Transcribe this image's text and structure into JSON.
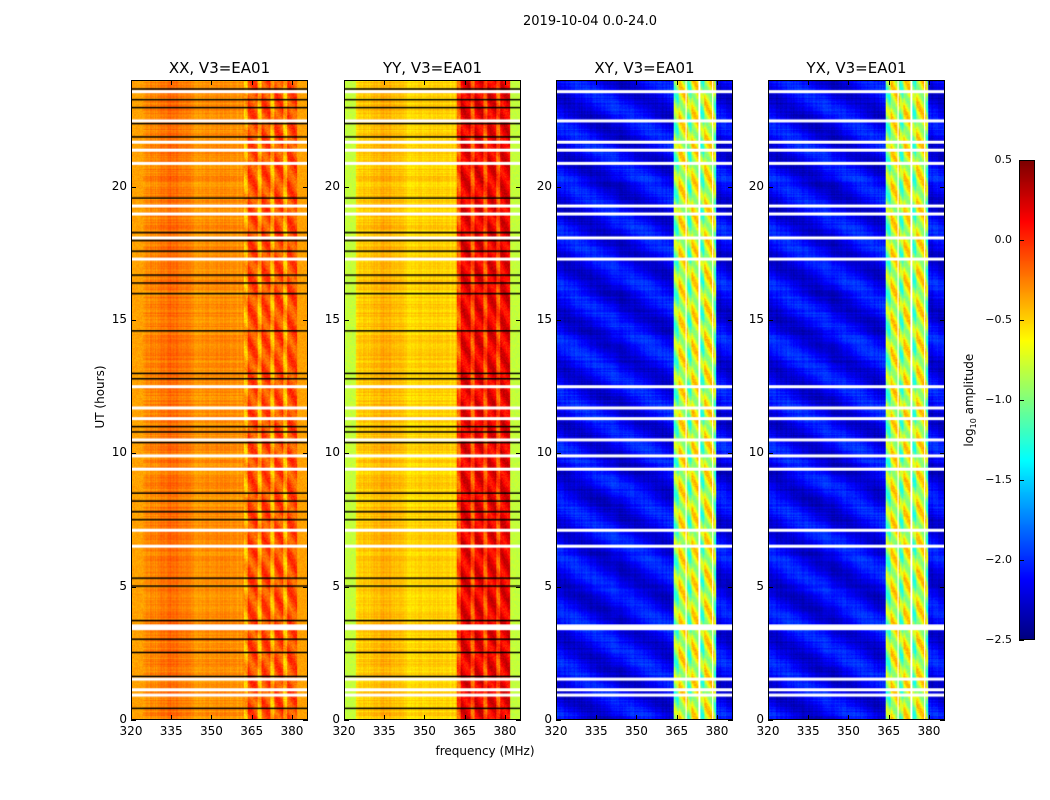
{
  "chart_data": {
    "type": "heatmap",
    "title": "2019-10-04 0.0-24.0",
    "xlabel": "frequency (MHz)",
    "ylabel": "UT (hours)",
    "xlim": [
      320,
      386
    ],
    "ylim": [
      0,
      24
    ],
    "xticks": [
      "320",
      "335",
      "350",
      "365",
      "380"
    ],
    "yticks": [
      "0",
      "5",
      "10",
      "15",
      "20"
    ],
    "colormap": "jet",
    "colorbar": {
      "label_main": "log",
      "label_sub": "10",
      "label_rest": " amplitude",
      "range": [
        -2.5,
        0.5
      ],
      "ticks": [
        "0.5",
        "0.0",
        "−0.5",
        "−1.0",
        "−1.5",
        "−2.0",
        "−2.5"
      ]
    },
    "panels": [
      {
        "title": "XX, V3=EA01",
        "base": -0.3,
        "band": [
          362,
          382
        ],
        "band_level": -0.15,
        "edge_level": -0.35
      },
      {
        "title": "YY, V3=EA01",
        "base": -0.5,
        "band": [
          362,
          382
        ],
        "band_level": 0.12,
        "edge_level": -0.8
      },
      {
        "title": "XY, V3=EA01",
        "base": -2.15,
        "band": [
          364,
          380
        ],
        "band_level": -0.75,
        "edge_level": -2.3
      },
      {
        "title": "YX, V3=EA01",
        "base": -2.15,
        "band": [
          364,
          380
        ],
        "band_level": -0.75,
        "edge_level": -2.3
      }
    ],
    "flagged_hours_white": [
      23.6,
      22.5,
      21.7,
      21.4,
      20.9,
      19.3,
      19.0,
      18.1,
      17.3,
      12.5,
      11.7,
      11.3,
      10.5,
      9.9,
      9.4,
      7.1,
      6.5,
      3.5,
      3.4,
      1.5,
      1.1,
      0.9
    ],
    "flagged_hours_black": [
      23.7,
      23.3,
      23.0,
      22.4,
      21.9,
      19.6,
      18.3,
      18.0,
      17.6,
      16.7,
      16.4,
      16.0,
      14.6,
      13.0,
      12.8,
      11.0,
      10.8,
      10.4,
      8.5,
      8.2,
      7.8,
      7.5,
      5.3,
      5.0,
      3.7,
      3.0,
      2.5,
      1.6,
      0.4
    ]
  }
}
